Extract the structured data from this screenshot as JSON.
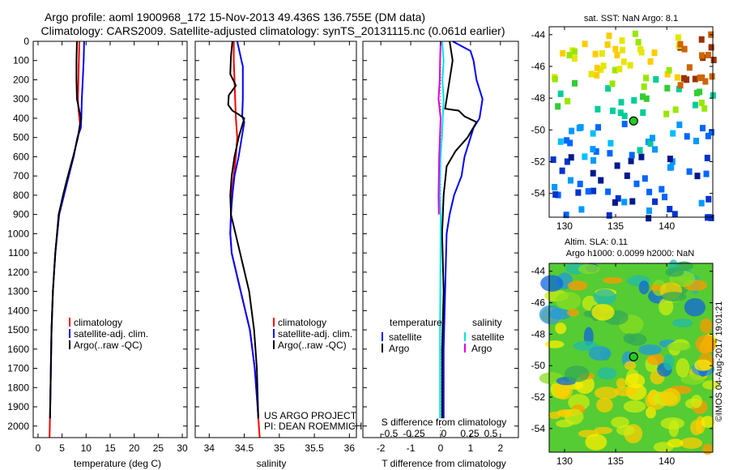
{
  "header": {
    "line1": "Argo profile: aoml 1900968_172 15-Nov-2013 49.436S 136.755E (DM data)",
    "line2": "Climatology: CARS2009. Satellite-adjusted climatology: synTS_20131115.nc (0.061d earlier)"
  },
  "side_text": "©IMOS 04-Aug-2017 19:01:21",
  "chart_data": [
    {
      "type": "line",
      "id": "temperature",
      "xlabel": "temperature (deg C)",
      "ylabel": "",
      "xlim": [
        -1,
        31
      ],
      "ylim": [
        0,
        2060
      ],
      "y_reversed": true,
      "xticks": [
        0,
        5,
        10,
        15,
        20,
        25,
        30
      ],
      "yticks": [
        0,
        100,
        200,
        300,
        400,
        500,
        600,
        700,
        800,
        900,
        1000,
        1100,
        1200,
        1300,
        1400,
        1500,
        1600,
        1700,
        1800,
        1900,
        2000
      ],
      "legend": [
        "climatology",
        "satellite-adj. clim.",
        "Argo(..raw -QC)"
      ],
      "legend_colors": [
        "#ff0000",
        "#0000ff",
        "#000000"
      ],
      "series": [
        {
          "name": "climatology",
          "color": "#ff0000",
          "x": [
            8.6,
            8.5,
            8.4,
            8.3,
            8.4,
            8.6,
            8.8,
            8.2,
            7.4,
            6.3,
            5.3,
            4.3,
            3.6,
            3.1,
            2.8,
            2.6,
            2.4
          ],
          "y": [
            0,
            100,
            200,
            300,
            350,
            400,
            440,
            500,
            600,
            700,
            800,
            900,
            1100,
            1300,
            1500,
            1800,
            2060
          ]
        },
        {
          "name": "satellite-adj. clim.",
          "color": "#0000ff",
          "x": [
            9.6,
            9.5,
            9.3,
            9.1,
            9.0,
            8.9,
            8.2,
            7.4,
            6.4,
            5.4,
            4.4,
            3.6,
            3.1,
            2.8,
            2.6,
            2.5
          ],
          "y": [
            0,
            100,
            200,
            300,
            400,
            450,
            500,
            600,
            700,
            800,
            900,
            1100,
            1300,
            1500,
            1800,
            1960
          ]
        },
        {
          "name": "Argo(..raw -QC)",
          "color": "#000000",
          "x": [
            8.1,
            8.0,
            8.0,
            8.1,
            8.5,
            8.9,
            8.3,
            7.3,
            6.2,
            5.2,
            4.3,
            3.6,
            3.1,
            2.8,
            2.6,
            2.5
          ],
          "y": [
            0,
            100,
            200,
            300,
            350,
            400,
            500,
            600,
            700,
            800,
            900,
            1100,
            1300,
            1500,
            1800,
            1960
          ]
        }
      ]
    },
    {
      "type": "line",
      "id": "salinity",
      "xlabel": "salinity",
      "ylabel": "",
      "xlim": [
        33.8,
        36.1
      ],
      "ylim": [
        0,
        2060
      ],
      "y_reversed": true,
      "xticks": [
        34,
        34.5,
        35,
        35.5,
        36
      ],
      "legend": [
        "climatology",
        "satellite-adj. clim.",
        "Argo(..raw -QC)"
      ],
      "legend_colors": [
        "#ff0000",
        "#0000ff",
        "#000000"
      ],
      "annotation_lines": [
        "US ARGO PROJECT",
        "PI: DEAN ROEMMICH"
      ],
      "series": [
        {
          "name": "climatology",
          "color": "#ff0000",
          "x": [
            34.35,
            34.35,
            34.36,
            34.37,
            34.38,
            34.4,
            34.38,
            34.35,
            34.32,
            34.31,
            34.3,
            34.32,
            34.45,
            34.58,
            34.65,
            34.69,
            34.72
          ],
          "y": [
            0,
            100,
            200,
            300,
            400,
            500,
            600,
            700,
            800,
            900,
            1000,
            1100,
            1300,
            1500,
            1700,
            1900,
            2060
          ]
        },
        {
          "name": "satellite-adj. clim.",
          "color": "#0000ff",
          "x": [
            34.4,
            34.46,
            34.48,
            34.48,
            34.47,
            34.5,
            34.42,
            34.36,
            34.33,
            34.31,
            34.3,
            34.32,
            34.45,
            34.58,
            34.65,
            34.69,
            34.7
          ],
          "y": [
            0,
            100,
            130,
            300,
            390,
            420,
            600,
            700,
            800,
            900,
            1000,
            1100,
            1300,
            1500,
            1700,
            1900,
            1960
          ]
        },
        {
          "name": "Argo(..raw -QC)",
          "color": "#000000",
          "x": [
            34.33,
            34.31,
            34.3,
            34.38,
            34.28,
            34.27,
            34.33,
            34.42,
            34.5,
            34.42,
            34.36,
            34.32,
            34.3,
            34.31,
            34.44,
            34.57,
            34.64,
            34.68,
            34.7
          ],
          "y": [
            0,
            80,
            170,
            230,
            280,
            330,
            360,
            380,
            400,
            500,
            600,
            700,
            800,
            900,
            1100,
            1300,
            1500,
            1700,
            1960
          ]
        }
      ]
    },
    {
      "type": "line",
      "id": "differences",
      "xlabel": "T difference from climatology",
      "xlabel_top": "S difference from climatology",
      "xlim": [
        -2.6,
        2.6
      ],
      "ylim": [
        0,
        2060
      ],
      "y_reversed": true,
      "xticks": [
        -2,
        -1,
        0,
        1,
        2
      ],
      "xtick_labels": [
        "-2",
        "-1",
        "0",
        "1",
        "2"
      ],
      "xticks_top": [
        -0.5,
        -0.25,
        0,
        0.25,
        0.5
      ],
      "xtick_labels_top": [
        "-0.5",
        "-0.25",
        "0",
        "0.25",
        "0.5"
      ],
      "legend_titles": [
        "temperature",
        "salinity"
      ],
      "legend": [
        "satellite",
        "Argo",
        "satellite",
        "Argo"
      ],
      "legend_colors": [
        "#0000ff",
        "#000000",
        "#00e5e5",
        "#e000e0"
      ],
      "series": [
        {
          "name": "satellite",
          "color": "#0000ff",
          "x": [
            0.4,
            1.0,
            1.1,
            1.2,
            1.4,
            1.3,
            1.1,
            1.0,
            0.8,
            0.7,
            0.45,
            0.3,
            0.2,
            0.15,
            0.1,
            0.1
          ],
          "y": [
            0,
            50,
            100,
            200,
            300,
            400,
            450,
            500,
            600,
            700,
            800,
            900,
            1000,
            1300,
            1600,
            1960
          ]
        },
        {
          "name": "Argo",
          "color": "#000000",
          "x": [
            0.3,
            0.4,
            0.3,
            0.2,
            0.15,
            0.6,
            0.8,
            1.2,
            0.9,
            0.5,
            0.2,
            0.1,
            0.05,
            0.1,
            0.05,
            0.05
          ],
          "y": [
            0,
            100,
            200,
            300,
            350,
            360,
            390,
            420,
            500,
            570,
            650,
            800,
            1000,
            1300,
            1600,
            1960
          ]
        },
        {
          "name": "satellite",
          "color": "#00e5e5",
          "x": [
            0.05,
            0.1,
            0.06,
            0.1,
            0.07,
            0.04,
            0.0,
            -0.02,
            -0.03,
            0.0,
            0.0,
            -0.02,
            -0.02
          ],
          "y": [
            0,
            100,
            200,
            300,
            400,
            500,
            600,
            700,
            800,
            900,
            1000,
            1500,
            1960
          ]
        },
        {
          "name": "Argo",
          "color": "#e000e0",
          "x": [
            0.0,
            -0.02,
            -0.03,
            -0.07,
            -0.04,
            0.0,
            -0.05,
            -0.07,
            -0.06
          ],
          "y": [
            0,
            100,
            200,
            300,
            340,
            400,
            600,
            800,
            900
          ]
        }
      ]
    },
    {
      "type": "heatmap",
      "id": "sst-map",
      "title": "sat. SST: NaN Argo: 8.1",
      "xticks": [
        130,
        135,
        140
      ],
      "yticks": [
        -44,
        -46,
        -48,
        -50,
        -52,
        -54
      ],
      "xlim": [
        128.5,
        144.5
      ],
      "ylim": [
        -55.5,
        -43.5
      ],
      "float_position": [
        136.755,
        -49.436
      ]
    },
    {
      "type": "heatmap",
      "id": "sla-map",
      "title_lines": [
        "Altim. SLA: 0.11",
        "Argo h1000: 0.0099 h2000: NaN"
      ],
      "xticks": [
        130,
        135,
        140
      ],
      "yticks": [
        -44,
        -46,
        -48,
        -50,
        -52,
        -54
      ],
      "xlim": [
        128.5,
        144.5
      ],
      "ylim": [
        -55.5,
        -43.5
      ],
      "float_position": [
        136.755,
        -49.436
      ]
    }
  ]
}
